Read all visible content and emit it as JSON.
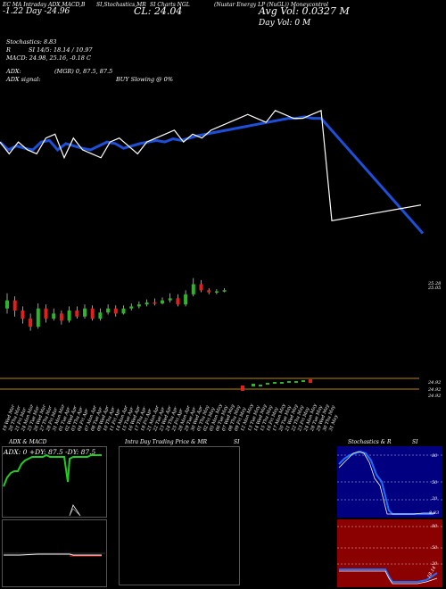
{
  "header": {
    "title_left": "EC MA Intraday ADX,MACD,B",
    "title_mid": "SI,Stochastics,MR",
    "title_mid2": "SI Charts NGL",
    "title_right": "(Nustar Energy LP (NuGL)) Moneycontrol",
    "day_change": "-1.22  Day  -24.96",
    "close": "CL: 24.04",
    "avg_vol": "Avg Vol: 0.0327  M",
    "day_vol": "Day Vol: 0   M"
  },
  "stats": {
    "stochastics": "Stochastics: 8.83",
    "r_line": "R",
    "si": "SI 14/5: 18.14 / 10.97",
    "macd": "MACD: 24.98, 25.16, -0.18  C",
    "adx": "ADX:",
    "adx_val": "(MGR) 0, 87.5,  87.5",
    "adx_signal": "ADX  signal:",
    "buy": "BUY Slowing @ 0%"
  },
  "price_labels": {
    "a": "25.28",
    "b": "25.05"
  },
  "volume_labels": {
    "a": "24.92",
    "b": "24.92",
    "c": "24.92"
  },
  "dates": [
    "19 Wed",
    "20 Thu",
    "21 Fri",
    "24 Mon",
    "25 Tue",
    "26 Wed",
    "27 Thu",
    "28 Fri",
    "31 Mon",
    "01 Tue",
    "02 Wed",
    "03 Thu",
    "04 Fri",
    "07 Mon",
    "08 Tue",
    "09 Wed",
    "10 Thu",
    "11 Fri",
    "14 Mon",
    "15 Tue",
    "16 Wed",
    "17 Thu",
    "18 Fri",
    "21 Mon",
    "22 Tue",
    "23 Wed",
    "24 Thu",
    "25 Fri",
    "28 Mon",
    "29 Tue",
    "30 Wed",
    "01 Thu",
    "02 Fri",
    "05 Mon",
    "06 Tue",
    "07 Wed",
    "08 Thu",
    "09 Fri",
    "12 Mon",
    "13 Tue",
    "14 Wed",
    "15 Thu",
    "16 Fri",
    "17 Mon",
    "20 Tue",
    "21 Wed",
    "22 Thu",
    "23 Fri",
    "24 Mon",
    "28 Tue",
    "29 Wed",
    "30 Thu",
    "31 May"
  ],
  "date_months": [
    "Mar",
    "Mar",
    "Mar",
    "Mar",
    "Mar",
    "Mar",
    "Mar",
    "Mar",
    "Mar",
    "Apr",
    "Apr",
    "Apr",
    "Apr",
    "Apr",
    "Apr",
    "Apr",
    "Apr",
    "Apr",
    "Apr",
    "Apr",
    "Apr",
    "Apr",
    "Apr",
    "Apr",
    "Apr",
    "Apr",
    "Apr",
    "Apr",
    "Apr",
    "Apr",
    "Apr",
    "May",
    "May",
    "May",
    "May",
    "May",
    "May",
    "May",
    "May",
    "May",
    "May",
    "May",
    "May",
    "May",
    "May",
    "May",
    "May",
    "May",
    "May",
    "May",
    "May",
    "May",
    ""
  ],
  "panels": {
    "adx_title": "ADX  & MACD",
    "adx_readout": "ADX: 0   +DY: 87.5 -DY: 87.5",
    "intra_title": "Intra  Day Trading Price  & MR",
    "intra_si": "SI",
    "stoch_title": "Stochastics & R",
    "stoch_si": "SI",
    "stoch_ticks": [
      "80",
      "50",
      "20"
    ],
    "rsi_ticks": [
      "80",
      "50",
      "20"
    ],
    "stoch_end": "8.83",
    "rsi_end": "18.14"
  },
  "colors": {
    "price_line": "#1e4fd8",
    "ma_line": "#ffffff",
    "up": "#2bb52b",
    "down": "#e0201c",
    "level": "#b8860b",
    "adx_green": "#22cc22",
    "rsi_bg": "#8b0000",
    "stoch_bg": "#000080"
  },
  "chart_data": {
    "type": "line",
    "title": "SI Charts NGL",
    "series": [
      {
        "name": "Price",
        "values": [
          25.2,
          25.1,
          25.15,
          25.12,
          25.1,
          25.2,
          25.22,
          25.1,
          25.18,
          25.15,
          25.12,
          25.1,
          25.15,
          25.2,
          25.18,
          25.12,
          25.15,
          25.18,
          25.2,
          25.22,
          25.2,
          25.24,
          25.22,
          25.25,
          25.28,
          25.3,
          25.32,
          25.34,
          25.36,
          25.38,
          25.4,
          25.42,
          25.44,
          25.46,
          25.48,
          25.5,
          25.5,
          25.52,
          25.5,
          25.5,
          24.04
        ]
      },
      {
        "name": "MA",
        "values": [
          25.2,
          25.05,
          25.2,
          25.1,
          25.05,
          25.25,
          25.3,
          25.0,
          25.25,
          25.1,
          25.05,
          25.0,
          25.2,
          25.25,
          25.15,
          25.05,
          25.2,
          25.25,
          25.3,
          25.35,
          25.2,
          25.3,
          25.25,
          25.35,
          25.4,
          25.45,
          25.5,
          25.55,
          25.5,
          25.45,
          25.6,
          25.55,
          25.5,
          25.5,
          25.55,
          25.6,
          24.2,
          24.25,
          24.3,
          24.35,
          24.4
        ]
      }
    ],
    "candles": [
      {
        "o": 25.1,
        "c": 25.18,
        "h": 25.25,
        "l": 25.05
      },
      {
        "o": 25.18,
        "c": 25.08,
        "h": 25.22,
        "l": 25.02
      },
      {
        "o": 25.08,
        "c": 25.0,
        "h": 25.12,
        "l": 24.95
      },
      {
        "o": 25.0,
        "c": 24.92,
        "h": 25.05,
        "l": 24.88
      },
      {
        "o": 24.92,
        "c": 25.1,
        "h": 25.15,
        "l": 24.9
      },
      {
        "o": 25.1,
        "c": 25.0,
        "h": 25.14,
        "l": 24.96
      },
      {
        "o": 25.0,
        "c": 25.05,
        "h": 25.1,
        "l": 24.98
      },
      {
        "o": 25.05,
        "c": 24.98,
        "h": 25.08,
        "l": 24.94
      },
      {
        "o": 24.98,
        "c": 25.08,
        "h": 25.12,
        "l": 24.96
      },
      {
        "o": 25.08,
        "c": 25.02,
        "h": 25.12,
        "l": 25.0
      },
      {
        "o": 25.02,
        "c": 25.1,
        "h": 25.14,
        "l": 25.0
      },
      {
        "o": 25.1,
        "c": 25.0,
        "h": 25.13,
        "l": 24.98
      },
      {
        "o": 25.0,
        "c": 25.06,
        "h": 25.1,
        "l": 24.98
      },
      {
        "o": 25.06,
        "c": 25.1,
        "h": 25.14,
        "l": 25.04
      },
      {
        "o": 25.1,
        "c": 25.05,
        "h": 25.13,
        "l": 25.02
      },
      {
        "o": 25.05,
        "c": 25.1,
        "h": 25.13,
        "l": 25.04
      },
      {
        "o": 25.1,
        "c": 25.12,
        "h": 25.15,
        "l": 25.08
      },
      {
        "o": 25.12,
        "c": 25.14,
        "h": 25.17,
        "l": 25.1
      },
      {
        "o": 25.14,
        "c": 25.16,
        "h": 25.19,
        "l": 25.12
      },
      {
        "o": 25.16,
        "c": 25.15,
        "h": 25.2,
        "l": 25.13
      },
      {
        "o": 25.15,
        "c": 25.18,
        "h": 25.21,
        "l": 25.14
      },
      {
        "o": 25.18,
        "c": 25.2,
        "h": 25.25,
        "l": 25.16
      },
      {
        "o": 25.2,
        "c": 25.14,
        "h": 25.24,
        "l": 25.12
      },
      {
        "o": 25.14,
        "c": 25.24,
        "h": 25.28,
        "l": 25.12
      },
      {
        "o": 25.24,
        "c": 25.34,
        "h": 25.4,
        "l": 25.22
      },
      {
        "o": 25.34,
        "c": 25.28,
        "h": 25.38,
        "l": 25.26
      },
      {
        "o": 25.28,
        "c": 25.26,
        "h": 25.3,
        "l": 25.24
      },
      {
        "o": 25.26,
        "c": 25.27,
        "h": 25.29,
        "l": 25.24
      },
      {
        "o": 25.27,
        "c": 25.28,
        "h": 25.3,
        "l": 25.26
      }
    ],
    "ylim": [
      24.0,
      25.7
    ]
  }
}
